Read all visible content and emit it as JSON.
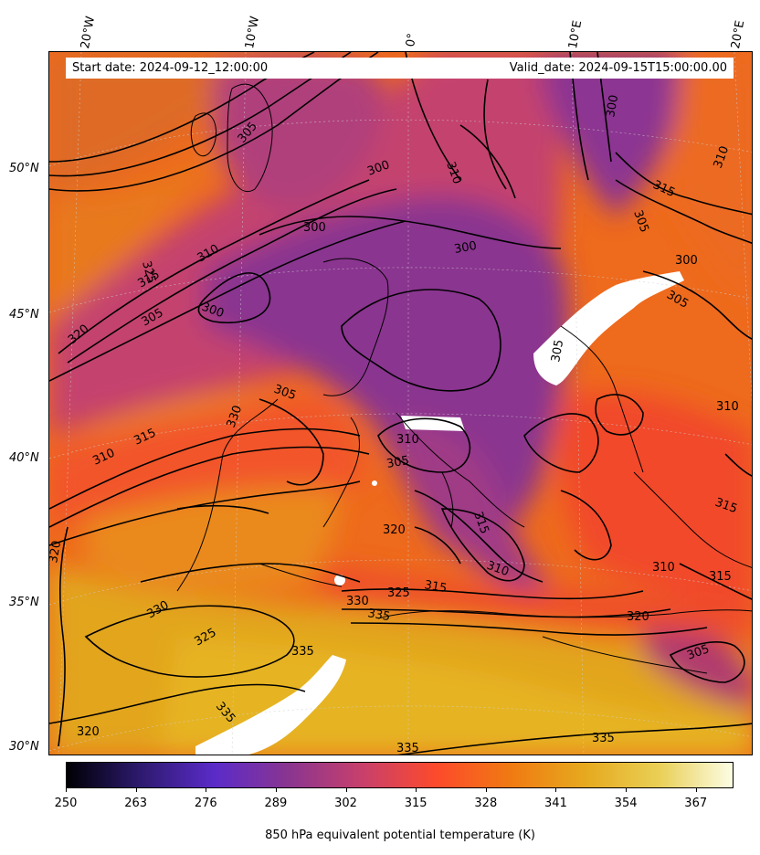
{
  "map": {
    "start_date": "Start date: 2024-09-12_12:00:00",
    "valid_date": "Valid_date: 2024-09-15T15:00:00.00",
    "longitude_labels": [
      "20°W",
      "10°W",
      "0°",
      "10°E",
      "20°E"
    ],
    "latitude_labels": [
      "50°N",
      "45°N",
      "40°N",
      "35°N",
      "30°N"
    ],
    "contour_labels": [
      "300",
      "305",
      "310",
      "315",
      "320",
      "325",
      "330",
      "335"
    ],
    "variable": "850 hPa equivalent potential temperature (K)"
  },
  "colorbar": {
    "label": "850 hPa equivalent potential temperature (K)",
    "ticks": [
      "250",
      "263",
      "276",
      "289",
      "302",
      "315",
      "328",
      "341",
      "354",
      "367"
    ],
    "vmin": 250,
    "vmax": 374,
    "colormap": [
      "#000004",
      "#2d1a6e",
      "#5b2bc9",
      "#8a3590",
      "#c8406b",
      "#fd4a2b",
      "#f07a12",
      "#e6a91e",
      "#e9cf55",
      "#fcfde4"
    ]
  },
  "colors": {
    "low_theta": "#8a3590",
    "mid_theta": "#fd4a2b",
    "high_theta": "#e69a1a",
    "contour": "#000000",
    "missing": "#ffffff"
  }
}
